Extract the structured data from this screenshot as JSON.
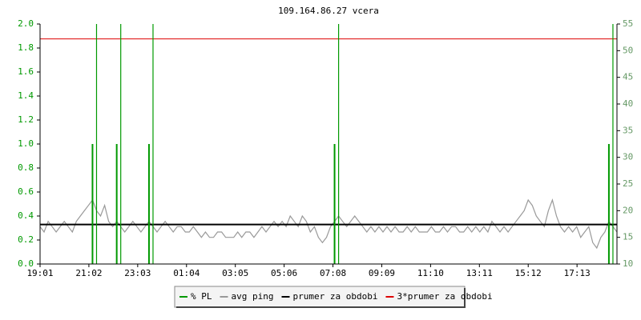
{
  "chart_data": {
    "type": "line",
    "title": "109.164.86.27 vcera",
    "xlim": [
      0,
      143
    ],
    "xticks": [
      {
        "value": 0,
        "label": "19:01"
      },
      {
        "value": 12.1,
        "label": "21:02"
      },
      {
        "value": 24.2,
        "label": "23:03"
      },
      {
        "value": 36.3,
        "label": "01:04"
      },
      {
        "value": 48.4,
        "label": "03:05"
      },
      {
        "value": 60.5,
        "label": "05:06"
      },
      {
        "value": 72.6,
        "label": "07:08"
      },
      {
        "value": 84.7,
        "label": "09:09"
      },
      {
        "value": 96.8,
        "label": "11:10"
      },
      {
        "value": 108.9,
        "label": "13:11"
      },
      {
        "value": 121,
        "label": "15:12"
      },
      {
        "value": 133.1,
        "label": "17:13"
      }
    ],
    "ylim": [
      0,
      2
    ],
    "yticks": [
      {
        "value": 0,
        "label": "0.0"
      },
      0.2,
      0.4,
      0.6,
      0.8,
      {
        "value": 1,
        "label": "1.0"
      },
      1.2,
      1.4,
      1.6,
      1.8,
      {
        "value": 2,
        "label": "2.0"
      }
    ],
    "y2lim": [
      10,
      55
    ],
    "y2ticks": [
      10,
      15,
      20,
      25,
      30,
      35,
      40,
      45,
      50,
      55
    ],
    "series": [
      {
        "name": "% PL",
        "color": "#009900",
        "style": "spikes",
        "values": [
          0,
          0,
          0,
          0,
          0,
          0,
          0,
          0,
          0,
          0,
          0,
          0,
          0,
          1,
          2,
          0,
          0,
          0,
          0,
          1,
          2,
          0,
          0,
          0,
          0,
          0,
          0,
          1,
          2,
          0,
          0,
          0,
          0,
          0,
          0,
          0,
          0,
          0,
          0,
          0,
          0,
          0,
          0,
          0,
          0,
          0,
          0,
          0,
          0,
          0,
          0,
          0,
          0,
          0,
          0,
          0,
          0,
          0,
          0,
          0,
          0,
          0,
          0,
          0,
          0,
          0,
          0,
          0,
          0,
          0,
          0,
          0,
          0,
          1,
          2,
          0,
          0,
          0,
          0,
          0,
          0,
          0,
          0,
          0,
          0,
          0,
          0,
          0,
          0,
          0,
          0,
          0,
          0,
          0,
          0,
          0,
          0,
          0,
          0,
          0,
          0,
          0,
          0,
          0,
          0,
          0,
          0,
          0,
          0,
          0,
          0,
          0,
          0,
          0,
          0,
          0,
          0,
          0,
          0,
          0,
          0,
          0,
          0,
          0,
          0,
          0,
          0,
          0,
          0,
          0,
          0,
          0,
          0,
          0,
          0,
          0,
          0,
          0,
          0,
          0,
          0,
          1,
          2,
          0
        ]
      },
      {
        "name": "avg ping",
        "color": "#999999",
        "axis": "y2",
        "style": "line",
        "values": [
          17,
          16,
          18,
          17,
          16,
          17,
          18,
          17,
          16,
          18,
          19,
          20,
          21,
          22,
          20,
          19,
          21,
          18,
          17,
          18,
          17,
          16,
          17,
          18,
          17,
          16,
          17,
          18,
          17,
          16,
          17,
          18,
          17,
          16,
          17,
          17,
          16,
          16,
          17,
          16,
          15,
          16,
          15,
          15,
          16,
          16,
          15,
          15,
          15,
          16,
          15,
          16,
          16,
          15,
          16,
          17,
          16,
          17,
          18,
          17,
          18,
          17,
          19,
          18,
          17,
          19,
          18,
          16,
          17,
          15,
          14,
          15,
          17,
          18,
          19,
          18,
          17,
          18,
          19,
          18,
          17,
          16,
          17,
          16,
          17,
          16,
          17,
          16,
          17,
          16,
          16,
          17,
          16,
          17,
          16,
          16,
          16,
          17,
          16,
          16,
          17,
          16,
          17,
          17,
          16,
          16,
          17,
          16,
          17,
          16,
          17,
          16,
          18,
          17,
          16,
          17,
          16,
          17,
          18,
          19,
          20,
          22,
          21,
          19,
          18,
          17,
          20,
          22,
          19,
          17,
          16,
          17,
          16,
          17,
          15,
          16,
          17,
          14,
          13,
          15,
          16,
          18,
          17,
          16
        ]
      },
      {
        "name": "prumer za obdobi",
        "color": "#000000",
        "axis": "y2",
        "style": "hline",
        "values": [
          17.4
        ]
      },
      {
        "name": "3*prumer za obdobi",
        "color": "#dd0000",
        "axis": "y2",
        "style": "hline",
        "values": [
          52.2
        ]
      }
    ]
  }
}
